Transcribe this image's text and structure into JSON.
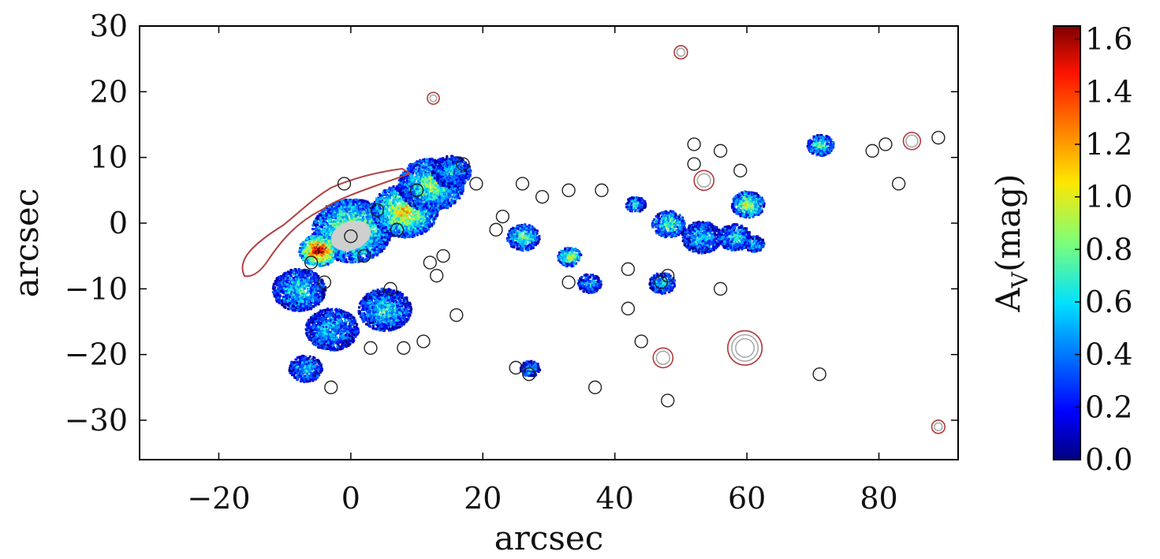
{
  "chart_data": [
    {
      "type": "scatter",
      "xlabel": "arcsec",
      "ylabel": "arcsec",
      "xlim": [
        -32,
        92
      ],
      "ylim": [
        -36,
        30
      ],
      "x_ticks": [
        -20,
        0,
        20,
        40,
        60,
        80
      ],
      "x_tick_labels": [
        "−20",
        "0",
        "20",
        "40",
        "60",
        "80"
      ],
      "y_ticks": [
        30,
        20,
        10,
        0,
        -10,
        -20,
        -30
      ],
      "y_tick_labels": [
        "30",
        "20",
        "10",
        "0",
        "−10",
        "−20",
        "−30"
      ],
      "grid": false,
      "colorbar": {
        "label": "A_V (mag)",
        "label_main": "A",
        "label_sub": "V",
        "label_unit": "(mag)",
        "range": [
          0.0,
          1.65
        ],
        "ticks": [
          0.0,
          0.2,
          0.4,
          0.6,
          0.8,
          1.0,
          1.2,
          1.4,
          1.6
        ],
        "tick_labels": [
          "0.0",
          "0.2",
          "0.4",
          "0.6",
          "0.8",
          "1.0",
          "1.2",
          "1.4",
          "1.6"
        ],
        "colormap": "jet"
      },
      "extinction_regions": [
        {
          "x": 0,
          "y": -1,
          "r": 6,
          "av": 0.9
        },
        {
          "x": -5,
          "y": -4,
          "r": 3,
          "av": 1.5
        },
        {
          "x": 8,
          "y": 2,
          "r": 5,
          "av": 1.0
        },
        {
          "x": 12,
          "y": 6,
          "r": 5,
          "av": 0.8
        },
        {
          "x": -8,
          "y": -10,
          "r": 4,
          "av": 0.6
        },
        {
          "x": -3,
          "y": -16,
          "r": 4,
          "av": 0.5
        },
        {
          "x": 5,
          "y": -13,
          "r": 4,
          "av": 0.6
        },
        {
          "x": 15,
          "y": 8,
          "r": 3,
          "av": 0.5
        },
        {
          "x": -7,
          "y": -22,
          "r": 2.5,
          "av": 0.5
        },
        {
          "x": 26,
          "y": -2,
          "r": 2.5,
          "av": 0.7
        },
        {
          "x": 33,
          "y": -5,
          "r": 1.8,
          "av": 0.9
        },
        {
          "x": 36,
          "y": -9,
          "r": 1.8,
          "av": 0.5
        },
        {
          "x": 48,
          "y": 0,
          "r": 2.5,
          "av": 0.7
        },
        {
          "x": 53,
          "y": -2,
          "r": 3,
          "av": 0.5
        },
        {
          "x": 58,
          "y": -2,
          "r": 2.5,
          "av": 0.6
        },
        {
          "x": 60,
          "y": 3,
          "r": 2.5,
          "av": 0.9
        },
        {
          "x": 47,
          "y": -9,
          "r": 2,
          "av": 0.6
        },
        {
          "x": 71,
          "y": 12,
          "r": 2,
          "av": 0.7
        },
        {
          "x": 27,
          "y": -22,
          "r": 1.5,
          "av": 0.5
        },
        {
          "x": 43,
          "y": 3,
          "r": 1.5,
          "av": 0.6
        },
        {
          "x": 61,
          "y": -3,
          "r": 1.5,
          "av": 0.5
        }
      ],
      "black_apertures": [
        {
          "x": -1,
          "y": 6
        },
        {
          "x": 0,
          "y": -2
        },
        {
          "x": 10,
          "y": 5
        },
        {
          "x": 6,
          "y": -10
        },
        {
          "x": -3,
          "y": -25
        },
        {
          "x": 11,
          "y": -18
        },
        {
          "x": 16,
          "y": -14
        },
        {
          "x": 37,
          "y": -25
        },
        {
          "x": 48,
          "y": -27
        },
        {
          "x": 42,
          "y": -7
        },
        {
          "x": 42,
          "y": -13
        },
        {
          "x": 44,
          "y": -18
        },
        {
          "x": 48,
          "y": -8
        },
        {
          "x": 56,
          "y": -10
        },
        {
          "x": 59,
          "y": 8
        },
        {
          "x": 52,
          "y": 12
        },
        {
          "x": 56,
          "y": 11
        },
        {
          "x": 71,
          "y": -23
        },
        {
          "x": 79,
          "y": 11
        },
        {
          "x": 83,
          "y": 6
        },
        {
          "x": 89,
          "y": 13
        },
        {
          "x": 81,
          "y": 12
        },
        {
          "x": 52,
          "y": 9
        },
        {
          "x": 2,
          "y": -5
        },
        {
          "x": -6,
          "y": -6
        },
        {
          "x": 4,
          "y": 2
        },
        {
          "x": -4,
          "y": -9
        },
        {
          "x": 7,
          "y": -1
        },
        {
          "x": 12,
          "y": -6
        },
        {
          "x": 29,
          "y": 4
        },
        {
          "x": 33,
          "y": 5
        },
        {
          "x": 38,
          "y": 5
        },
        {
          "x": 26,
          "y": 6
        },
        {
          "x": 23,
          "y": 1
        },
        {
          "x": 14,
          "y": -5
        },
        {
          "x": 13,
          "y": -8
        },
        {
          "x": 17,
          "y": 9
        },
        {
          "x": 19,
          "y": 6
        },
        {
          "x": 22,
          "y": -1
        },
        {
          "x": 3,
          "y": -19
        },
        {
          "x": 8,
          "y": -19
        },
        {
          "x": 25,
          "y": -22
        },
        {
          "x": 27,
          "y": -23
        },
        {
          "x": 33,
          "y": -9
        },
        {
          "x": 47,
          "y": -9
        }
      ],
      "red_apertures": [
        {
          "x": 50,
          "y": 26,
          "r": [
            1.0,
            0.6
          ]
        },
        {
          "x": 12.5,
          "y": 19,
          "r": [
            0.9,
            0.5
          ]
        },
        {
          "x": 85,
          "y": 12.5,
          "r": [
            1.3,
            0.9
          ]
        },
        {
          "x": 53.5,
          "y": 6.5,
          "r": [
            1.5,
            1.0
          ]
        },
        {
          "x": 59.7,
          "y": -19,
          "r": [
            2.6,
            2.0,
            1.4
          ]
        },
        {
          "x": 47.3,
          "y": -20.5,
          "r": [
            1.5,
            1.0
          ]
        },
        {
          "x": 89,
          "y": -31,
          "r": [
            1.0,
            0.6
          ]
        }
      ]
    }
  ]
}
